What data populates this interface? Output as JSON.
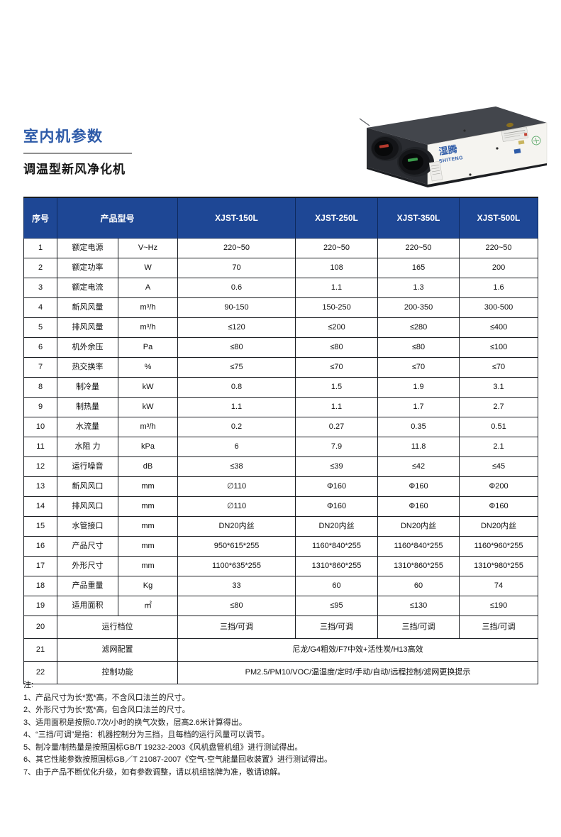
{
  "page": {
    "title": "室内机参数",
    "subtitle": "调温型新风净化机"
  },
  "product_image": {
    "brand_cn": "湿腾",
    "brand_en": "SHITENG"
  },
  "table": {
    "headers": {
      "no": "序号",
      "model": "产品型号",
      "models": [
        "XJST-150L",
        "XJST-250L",
        "XJST-350L",
        "XJST-500L"
      ]
    },
    "rows": [
      {
        "no": "1",
        "name": "额定电源",
        "unit": "V~Hz",
        "values": [
          "220~50",
          "220~50",
          "220~50",
          "220~50"
        ]
      },
      {
        "no": "2",
        "name": "额定功率",
        "unit": "W",
        "values": [
          "70",
          "108",
          "165",
          "200"
        ]
      },
      {
        "no": "3",
        "name": "额定电流",
        "unit": "A",
        "values": [
          "0.6",
          "1.1",
          "1.3",
          "1.6"
        ]
      },
      {
        "no": "4",
        "name": "新风风量",
        "unit": "m³/h",
        "values": [
          "90-150",
          "150-250",
          "200-350",
          "300-500"
        ]
      },
      {
        "no": "5",
        "name": "排风风量",
        "unit": "m³/h",
        "values": [
          "≤120",
          "≤200",
          "≤280",
          "≤400"
        ]
      },
      {
        "no": "6",
        "name": "机外余压",
        "unit": "Pa",
        "values": [
          "≤80",
          "≤80",
          "≤80",
          "≤100"
        ]
      },
      {
        "no": "7",
        "name": "热交换率",
        "unit": "%",
        "values": [
          "≤75",
          "≤70",
          "≤70",
          "≤70"
        ]
      },
      {
        "no": "8",
        "name": "制冷量",
        "unit": "kW",
        "values": [
          "0.8",
          "1.5",
          "1.9",
          "3.1"
        ]
      },
      {
        "no": "9",
        "name": "制热量",
        "unit": "kW",
        "values": [
          "1.1",
          "1.1",
          "1.7",
          "2.7"
        ]
      },
      {
        "no": "10",
        "name": "水流量",
        "unit": "m³/h",
        "values": [
          "0.2",
          "0.27",
          "0.35",
          "0.51"
        ]
      },
      {
        "no": "11",
        "name": "水阻 力",
        "unit": "kPa",
        "values": [
          "6",
          "7.9",
          "11.8",
          "2.1"
        ]
      },
      {
        "no": "12",
        "name": "运行噪音",
        "unit": "dB",
        "values": [
          "≤38",
          "≤39",
          "≤42",
          "≤45"
        ]
      },
      {
        "no": "13",
        "name": "新风风口",
        "unit": "mm",
        "values": [
          "∅110",
          "Φ160",
          "Φ160",
          "Φ200"
        ]
      },
      {
        "no": "14",
        "name": "排风风口",
        "unit": "mm",
        "values": [
          "∅110",
          "Φ160",
          "Φ160",
          "Φ160"
        ]
      },
      {
        "no": "15",
        "name": "水管接口",
        "unit": "mm",
        "values": [
          "DN20内丝",
          "DN20内丝",
          "DN20内丝",
          "DN20内丝"
        ]
      },
      {
        "no": "16",
        "name": "产品尺寸",
        "unit": "mm",
        "values": [
          "950*615*255",
          "1160*840*255",
          "1160*840*255",
          "1160*960*255"
        ]
      },
      {
        "no": "17",
        "name": "外形尺寸",
        "unit": "mm",
        "values": [
          "1100*635*255",
          "1310*860*255",
          "1310*860*255",
          "1310*980*255"
        ]
      },
      {
        "no": "18",
        "name": "产品重量",
        "unit": "Kg",
        "values": [
          "33",
          "60",
          "60",
          "74"
        ]
      },
      {
        "no": "19",
        "name": "适用面积",
        "unit": "㎡",
        "values": [
          "≤80",
          "≤95",
          "≤130",
          "≤190"
        ]
      },
      {
        "no": "20",
        "name": "运行档位",
        "unit": null,
        "values": [
          "三挡/可调",
          "三挡/可调",
          "三挡/可调",
          "三挡/可调"
        ]
      },
      {
        "no": "21",
        "name": "滤网配置",
        "unit": null,
        "values": [
          "尼龙/G4粗效/F7中效+活性炭/H13高效"
        ]
      },
      {
        "no": "22",
        "name": "控制功能",
        "unit": null,
        "values": [
          "PM2.5/PM10/VOC/温湿度/定时/手动/自动/远程控制/滤网更换提示"
        ]
      }
    ]
  },
  "notes": {
    "label": "注:",
    "items": [
      "1、产品尺寸为长*宽*高，不含风口法兰的尺寸。",
      "2、外形尺寸为长*宽*高，包含风口法兰的尺寸。",
      "3、适用面积是按照0.7次/小时的换气次数，层高2.6米计算得出。",
      "4、“三挡/可调”是指：机器控制分为三挡，且每档的运行风量可以调节。",
      "5、制冷量/制热量是按照国标GB/T 19232-2003《风机盘管机组》进行测试得出。",
      "6、其它性能参数按照国标GB／T 21087-2007《空气-空气能量回收装置》进行测试得出。",
      "7、由于产品不断优化升级，如有参数调整，请以机组铭牌为准，敬请谅解。"
    ]
  },
  "colors": {
    "header_bg": "#1e4795",
    "title_blue": "#2d5aa8",
    "logo_blue": "#2e5ba8"
  }
}
